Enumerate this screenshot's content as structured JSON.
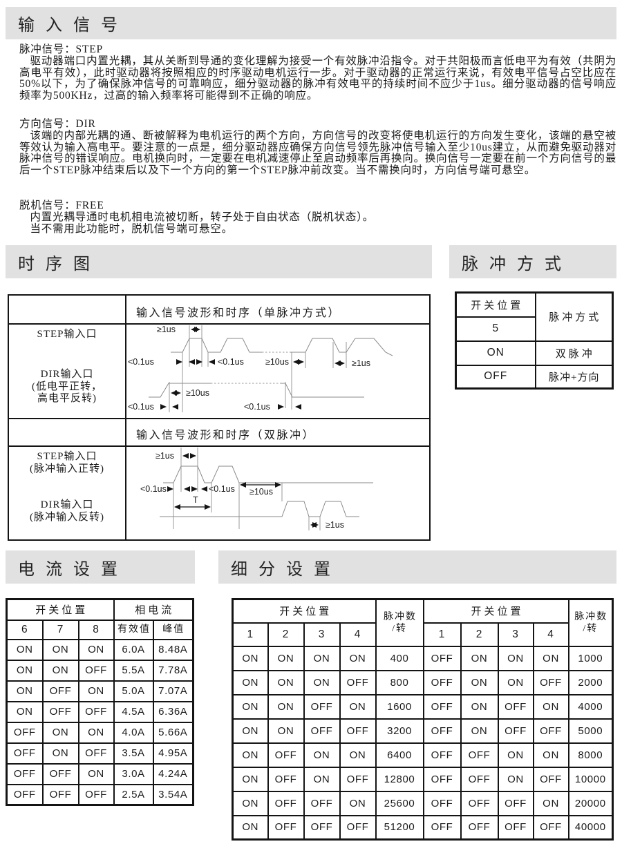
{
  "titles": {
    "input_signal": "输入信号",
    "timing": "时序图",
    "pulse_mode": "脉冲方式",
    "current": "电流设置",
    "microstep": "细分设置"
  },
  "paragraphs": {
    "step_title": "脉冲信号：STEP",
    "step_body": "驱动器端口内置光耦，其从关断到导通的变化理解为接受一个有效脉冲沿指令。对于共阳极而言低电平为有效（共阴为高电平有效），此时驱动器将按照相应的时序驱动电机运行一步。对于驱动器的正常运行来说，有效电平信号占空比应在50%以下，为了确保脉冲信号的可靠响应，细分驱动器的脉冲有效电平的持续时间不应少于1us。细分驱动器的信号响应频率为500KHz，过高的输入频率将可能得到不正确的响应。",
    "dir_title": "方向信号：DIR",
    "dir_body": "该端的内部光耦的通、断被解释为电机运行的两个方向，方向信号的改变将使电机运行的方向发生变化，该端的悬空被等效认为输入高电平。要注意的一点是，细分驱动器应确保方向信号领先脉冲信号输入至少10us建立，从而避免驱动器对脉冲信号的错误响应。电机换向时，一定要在电机减速停止至启动频率后再换向。换向信号一定要在前一个方向信号的最后一个STEP脉冲结束后以及下一个方向的第一个STEP脉冲前改变。当不需换向时，方向信号端可悬空。",
    "free_title": "脱机信号：FREE",
    "free_line1": "内置光耦导通时电机相电流被切断，转子处于自由状态（脱机状态）。",
    "free_line2": "当不需用此功能时，脱机信号端可悬空。"
  },
  "timing": {
    "single_header": "输入信号波形和时序（单脉冲方式）",
    "single_step_label": "STEP输入口",
    "single_dir_label": "DIR输入口",
    "single_dir_note1": "(低电平正转，",
    "single_dir_note2": "高电平反转)",
    "double_header": "输入信号波形和时序（双脉冲）",
    "double_step_label": "STEP输入口",
    "double_step_note": "(脉冲输入正转)",
    "double_dir_label": "DIR输入口",
    "double_dir_note": "(脉冲输入反转)"
  },
  "wave_labels": {
    "ge1us": "≥1us",
    "lt01us": "<0.1us",
    "ge10us": "≥10us",
    "t": "T"
  },
  "pulse_mode": {
    "switch_header": "开关位置",
    "switch_no": "5",
    "mode_header": "脉冲方式",
    "rows": [
      [
        "ON",
        "双脉冲"
      ],
      [
        "OFF",
        "脉冲+方向"
      ]
    ]
  },
  "current_table": {
    "group_headers": [
      "开关位置",
      "相电流"
    ],
    "col_headers": [
      "6",
      "7",
      "8",
      "有效值",
      "峰值"
    ],
    "rows": [
      [
        "ON",
        "ON",
        "ON",
        "6.0A",
        "8.48A"
      ],
      [
        "ON",
        "ON",
        "OFF",
        "5.5A",
        "7.78A"
      ],
      [
        "ON",
        "OFF",
        "ON",
        "5.0A",
        "7.07A"
      ],
      [
        "ON",
        "OFF",
        "OFF",
        "4.5A",
        "6.36A"
      ],
      [
        "OFF",
        "ON",
        "ON",
        "4.0A",
        "5.66A"
      ],
      [
        "OFF",
        "ON",
        "OFF",
        "3.5A",
        "4.95A"
      ],
      [
        "OFF",
        "OFF",
        "ON",
        "3.0A",
        "4.24A"
      ],
      [
        "OFF",
        "OFF",
        "OFF",
        "2.5A",
        "3.54A"
      ]
    ]
  },
  "microstep_table": {
    "group_header": "开关位置",
    "pulse_header_line1": "脉冲数",
    "pulse_header_line2": "/转",
    "col_headers": [
      "1",
      "2",
      "3",
      "4"
    ],
    "rows": [
      [
        "ON",
        "ON",
        "ON",
        "ON",
        "400",
        "OFF",
        "ON",
        "ON",
        "ON",
        "1000"
      ],
      [
        "ON",
        "ON",
        "ON",
        "OFF",
        "800",
        "OFF",
        "ON",
        "ON",
        "OFF",
        "2000"
      ],
      [
        "ON",
        "ON",
        "OFF",
        "ON",
        "1600",
        "OFF",
        "ON",
        "OFF",
        "ON",
        "4000"
      ],
      [
        "ON",
        "ON",
        "OFF",
        "OFF",
        "3200",
        "OFF",
        "ON",
        "OFF",
        "OFF",
        "5000"
      ],
      [
        "ON",
        "OFF",
        "ON",
        "ON",
        "6400",
        "OFF",
        "OFF",
        "ON",
        "ON",
        "8000"
      ],
      [
        "ON",
        "OFF",
        "ON",
        "OFF",
        "12800",
        "OFF",
        "OFF",
        "ON",
        "OFF",
        "10000"
      ],
      [
        "ON",
        "OFF",
        "OFF",
        "ON",
        "25600",
        "OFF",
        "OFF",
        "OFF",
        "ON",
        "20000"
      ],
      [
        "ON",
        "OFF",
        "OFF",
        "OFF",
        "51200",
        "OFF",
        "OFF",
        "OFF",
        "OFF",
        "40000"
      ]
    ]
  }
}
